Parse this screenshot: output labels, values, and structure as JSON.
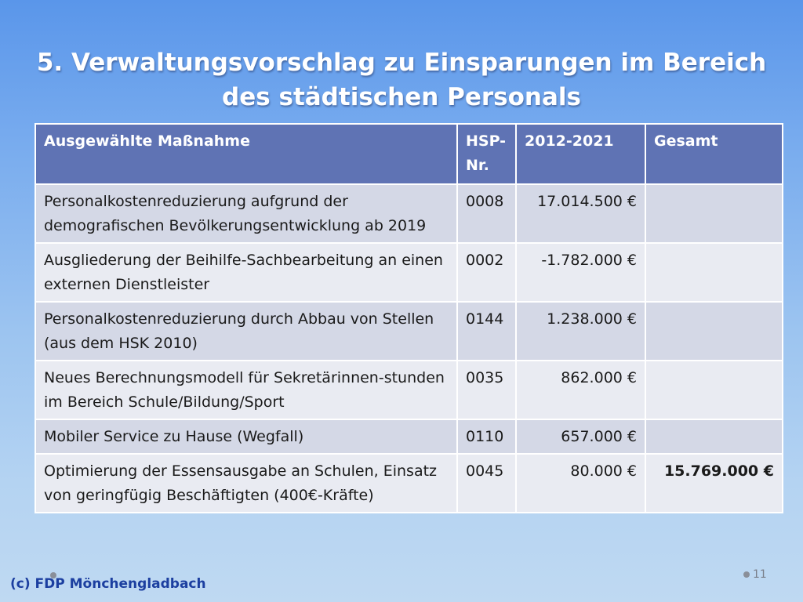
{
  "slide": {
    "title_line1": "5. Verwaltungsvorschlag zu Einsparungen im Bereich",
    "title_line2": "des städtischen Personals",
    "footer": "(c) FDP Mönchengladbach",
    "page_number": "11"
  },
  "table": {
    "headers": [
      "Ausgewählte Maßnahme",
      "HSP-Nr.",
      "2012-2021",
      "Gesamt"
    ],
    "rows": [
      {
        "measure": "Personalkostenreduzierung aufgrund der demografischen Bevölkerungsentwicklung ab 2019",
        "hsp": "0008",
        "amount": "17.014.500 €",
        "total": ""
      },
      {
        "measure": "Ausgliederung der Beihilfe-Sachbearbeitung an einen externen Dienstleister",
        "hsp": "0002",
        "amount": "-1.782.000 €",
        "total": ""
      },
      {
        "measure": "Personalkostenreduzierung durch Abbau von Stellen (aus dem HSK 2010)",
        "hsp": "0144",
        "amount": "1.238.000 €",
        "total": ""
      },
      {
        "measure": "Neues Berechnungsmodell für Sekretärinnen-stunden im Bereich Schule/Bildung/Sport",
        "hsp": "0035",
        "amount": "862.000 €",
        "total": ""
      },
      {
        "measure": "Mobiler Service zu Hause (Wegfall)",
        "hsp": "0110",
        "amount": "657.000 €",
        "total": ""
      },
      {
        "measure": "Optimierung der Essensausgabe an Schulen, Einsatz von geringfügig Beschäftigten (400€-Kräfte)",
        "hsp": "0045",
        "amount": "80.000 €",
        "total": "15.769.000 €"
      }
    ]
  }
}
